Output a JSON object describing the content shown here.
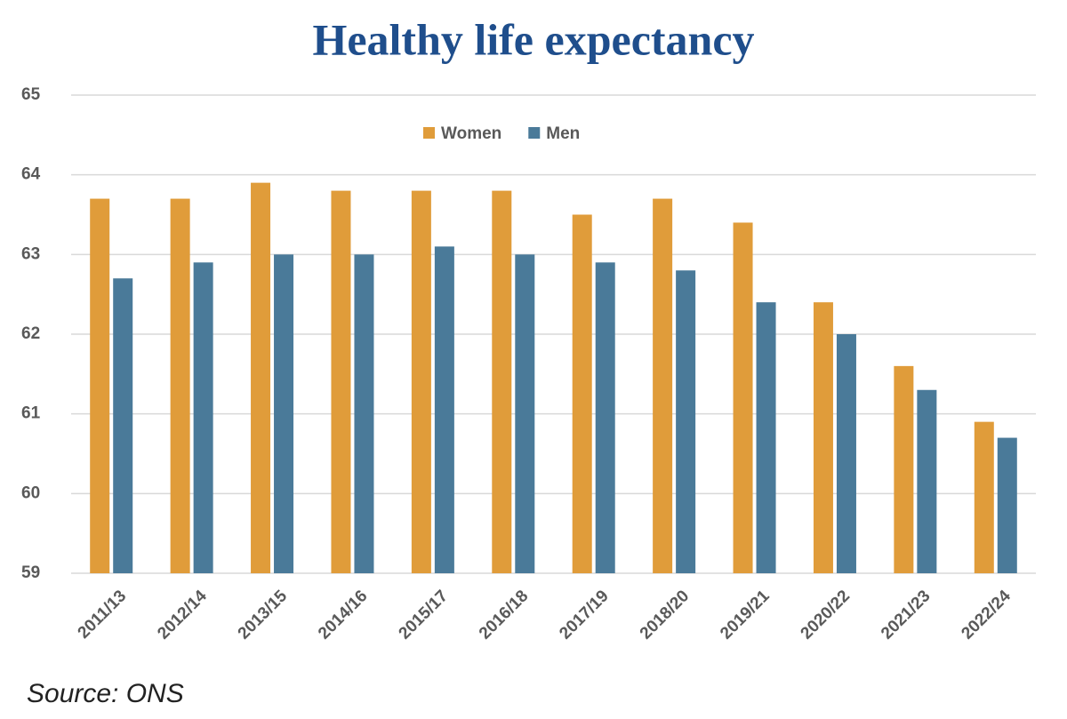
{
  "chart_data": {
    "type": "bar",
    "title": "Healthy life expectancy",
    "source": "Source: ONS",
    "categories": [
      "2011/13",
      "2012/14",
      "2013/15",
      "2014/16",
      "2015/17",
      "2016/18",
      "2017/19",
      "2018/20",
      "2019/21",
      "2020/22",
      "2021/23",
      "2022/24"
    ],
    "series": [
      {
        "name": "Women",
        "color": "#e09c3a",
        "values": [
          63.7,
          63.7,
          63.9,
          63.8,
          63.8,
          63.8,
          63.5,
          63.7,
          63.4,
          62.4,
          61.6,
          60.9
        ]
      },
      {
        "name": "Men",
        "color": "#4a7a99",
        "values": [
          62.7,
          62.9,
          63.0,
          63.0,
          63.1,
          63.0,
          62.9,
          62.8,
          62.4,
          62.0,
          61.3,
          60.7
        ]
      }
    ],
    "ylim": [
      59,
      65
    ],
    "yticks": [
      59,
      60,
      61,
      62,
      63,
      64,
      65
    ],
    "grid": true,
    "legend": "top"
  }
}
